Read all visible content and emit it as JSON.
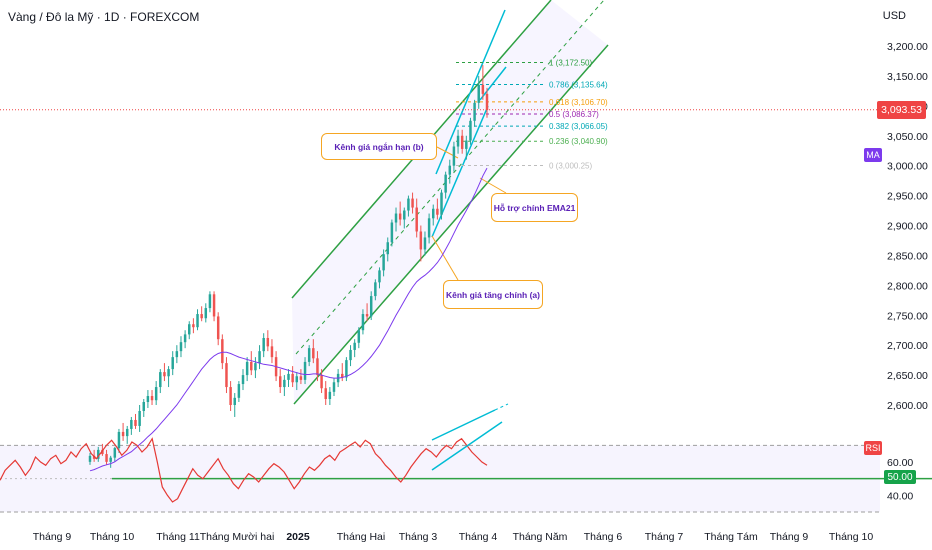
{
  "header": {
    "title": "Vàng / Đô la Mỹ · 1D · FOREXCOM",
    "currency": "USD"
  },
  "badges": {
    "last_price": "3,093.53",
    "ma_label": "MA",
    "rsi_label": "RSI",
    "rsi_level": "50.00"
  },
  "annotations": {
    "short_channel": "Kênh giá ngắn hạn (b)",
    "ema_support": "Hỗ trợ chính EMA21",
    "main_channel": "Kênh giá tăng chính (a)"
  },
  "colors": {
    "up": "#26a69a",
    "down": "#ef5350",
    "ma": "#7c3aed",
    "rsi": "#e53935",
    "channel": "#2ea043",
    "short_channel": "#00bcd4",
    "callout": "#f5a623"
  },
  "chart_data": {
    "type": "candlestick",
    "title": "Vàng / Đô la Mỹ · 1D · FOREXCOM",
    "price_axis": {
      "ticks": [
        "3,200.00",
        "3,150.00",
        "3,100.00",
        "3,050.00",
        "3,000.00",
        "2,950.00",
        "2,900.00",
        "2,850.00",
        "2,800.00",
        "2,750.00",
        "2,700.00",
        "2,650.00",
        "2,600.00"
      ],
      "range": [
        2580,
        3230
      ]
    },
    "x_axis": {
      "ticks": [
        "Tháng 9",
        "Tháng 10",
        "Tháng 11",
        "Tháng Mười hai",
        "2025",
        "Tháng Hai",
        "Tháng 3",
        "Tháng 4",
        "Tháng Năm",
        "Tháng 6",
        "Tháng 7",
        "Tháng Tám",
        "Tháng 9",
        "Tháng 10"
      ]
    },
    "last_price": 3093.53,
    "fibonacci": [
      {
        "level": "1",
        "price": 3172.5,
        "label": "1 (3,172.50)",
        "color": "#2ea043"
      },
      {
        "level": "0.786",
        "price": 3135.64,
        "label": "0.786 (3,135.64)",
        "color": "#00a8b5"
      },
      {
        "level": "0.618",
        "price": 3106.7,
        "label": "0.618 (3,106.70)",
        "color": "#f59e0b"
      },
      {
        "level": "0.5",
        "price": 3086.37,
        "label": "0.5 (3,086.37)",
        "color": "#9c27b0"
      },
      {
        "level": "0.382",
        "price": 3066.05,
        "label": "0.382 (3,066.05)",
        "color": "#00a8b5"
      },
      {
        "level": "0.236",
        "price": 3040.9,
        "label": "0.236 (3,040.90)",
        "color": "#4caf50"
      },
      {
        "level": "0",
        "price": 3000.25,
        "label": "0 (3,000.25)",
        "color": "#bdbdbd"
      }
    ],
    "candles": [
      [
        2505,
        2520,
        2500,
        2515
      ],
      [
        2515,
        2525,
        2505,
        2510
      ],
      [
        2510,
        2530,
        2505,
        2525
      ],
      [
        2525,
        2535,
        2515,
        2518
      ],
      [
        2518,
        2525,
        2500,
        2505
      ],
      [
        2505,
        2515,
        2495,
        2512
      ],
      [
        2512,
        2530,
        2505,
        2528
      ],
      [
        2528,
        2560,
        2520,
        2555
      ],
      [
        2555,
        2570,
        2540,
        2548
      ],
      [
        2548,
        2565,
        2535,
        2560
      ],
      [
        2560,
        2580,
        2550,
        2575
      ],
      [
        2575,
        2585,
        2560,
        2565
      ],
      [
        2565,
        2600,
        2555,
        2590
      ],
      [
        2590,
        2610,
        2580,
        2605
      ],
      [
        2605,
        2625,
        2595,
        2615
      ],
      [
        2615,
        2625,
        2600,
        2608
      ],
      [
        2608,
        2640,
        2600,
        2630
      ],
      [
        2630,
        2660,
        2620,
        2655
      ],
      [
        2655,
        2670,
        2640,
        2648
      ],
      [
        2648,
        2665,
        2630,
        2660
      ],
      [
        2660,
        2690,
        2650,
        2680
      ],
      [
        2680,
        2700,
        2670,
        2690
      ],
      [
        2690,
        2715,
        2680,
        2705
      ],
      [
        2705,
        2725,
        2695,
        2718
      ],
      [
        2718,
        2740,
        2710,
        2735
      ],
      [
        2735,
        2745,
        2720,
        2730
      ],
      [
        2730,
        2760,
        2725,
        2752
      ],
      [
        2752,
        2765,
        2740,
        2745
      ],
      [
        2745,
        2770,
        2738,
        2762
      ],
      [
        2762,
        2790,
        2755,
        2785
      ],
      [
        2785,
        2790,
        2740,
        2748
      ],
      [
        2748,
        2755,
        2700,
        2710
      ],
      [
        2710,
        2718,
        2660,
        2670
      ],
      [
        2670,
        2680,
        2620,
        2630
      ],
      [
        2630,
        2640,
        2590,
        2600
      ],
      [
        2600,
        2620,
        2580,
        2612
      ],
      [
        2612,
        2640,
        2605,
        2635
      ],
      [
        2635,
        2660,
        2625,
        2650
      ],
      [
        2650,
        2680,
        2640,
        2672
      ],
      [
        2672,
        2690,
        2650,
        2658
      ],
      [
        2658,
        2680,
        2645,
        2670
      ],
      [
        2670,
        2700,
        2660,
        2690
      ],
      [
        2690,
        2720,
        2680,
        2712
      ],
      [
        2712,
        2725,
        2690,
        2698
      ],
      [
        2698,
        2710,
        2670,
        2680
      ],
      [
        2680,
        2690,
        2640,
        2648
      ],
      [
        2648,
        2660,
        2620,
        2630
      ],
      [
        2630,
        2650,
        2615,
        2642
      ],
      [
        2642,
        2660,
        2630,
        2652
      ],
      [
        2652,
        2665,
        2630,
        2638
      ],
      [
        2638,
        2655,
        2625,
        2648
      ],
      [
        2648,
        2660,
        2635,
        2642
      ],
      [
        2642,
        2680,
        2635,
        2672
      ],
      [
        2672,
        2700,
        2665,
        2695
      ],
      [
        2695,
        2710,
        2670,
        2678
      ],
      [
        2678,
        2690,
        2640,
        2650
      ],
      [
        2650,
        2660,
        2620,
        2628
      ],
      [
        2628,
        2640,
        2600,
        2610
      ],
      [
        2610,
        2630,
        2600,
        2622
      ],
      [
        2622,
        2645,
        2615,
        2638
      ],
      [
        2638,
        2660,
        2630,
        2652
      ],
      [
        2652,
        2670,
        2640,
        2646
      ],
      [
        2646,
        2680,
        2640,
        2675
      ],
      [
        2675,
        2700,
        2665,
        2692
      ],
      [
        2692,
        2710,
        2680,
        2704
      ],
      [
        2704,
        2730,
        2695,
        2725
      ],
      [
        2725,
        2760,
        2718,
        2752
      ],
      [
        2752,
        2770,
        2740,
        2748
      ],
      [
        2748,
        2790,
        2742,
        2782
      ],
      [
        2782,
        2810,
        2775,
        2805
      ],
      [
        2805,
        2830,
        2795,
        2825
      ],
      [
        2825,
        2860,
        2815,
        2852
      ],
      [
        2852,
        2880,
        2840,
        2872
      ],
      [
        2872,
        2910,
        2865,
        2905
      ],
      [
        2905,
        2930,
        2890,
        2920
      ],
      [
        2920,
        2940,
        2900,
        2910
      ],
      [
        2910,
        2930,
        2895,
        2925
      ],
      [
        2925,
        2950,
        2915,
        2945
      ],
      [
        2945,
        2955,
        2920,
        2930
      ],
      [
        2930,
        2945,
        2880,
        2890
      ],
      [
        2890,
        2900,
        2840,
        2860
      ],
      [
        2860,
        2890,
        2850,
        2880
      ],
      [
        2880,
        2920,
        2870,
        2912
      ],
      [
        2912,
        2935,
        2900,
        2928
      ],
      [
        2928,
        2945,
        2910,
        2918
      ],
      [
        2918,
        2960,
        2910,
        2955
      ],
      [
        2955,
        2990,
        2945,
        2985
      ],
      [
        2985,
        3010,
        2970,
        3000
      ],
      [
        3000,
        3040,
        2990,
        3032
      ],
      [
        3032,
        3060,
        3020,
        3050
      ],
      [
        3050,
        3060,
        3020,
        3028
      ],
      [
        3028,
        3050,
        3010,
        3042
      ],
      [
        3042,
        3080,
        3035,
        3075
      ],
      [
        3075,
        3110,
        3065,
        3105
      ],
      [
        3105,
        3150,
        3095,
        3135
      ],
      [
        3135,
        3168,
        3110,
        3120
      ],
      [
        3120,
        3130,
        3080,
        3093
      ]
    ],
    "ma21": [
      2490,
      2492,
      2495,
      2498,
      2500,
      2502,
      2505,
      2510,
      2514,
      2518,
      2522,
      2528,
      2534,
      2540,
      2547,
      2553,
      2560,
      2568,
      2576,
      2584,
      2592,
      2600,
      2610,
      2620,
      2630,
      2640,
      2650,
      2660,
      2668,
      2676,
      2682,
      2686,
      2688,
      2688,
      2686,
      2683,
      2680,
      2678,
      2676,
      2674,
      2672,
      2670,
      2668,
      2667,
      2666,
      2664,
      2662,
      2660,
      2658,
      2656,
      2654,
      2652,
      2651,
      2651,
      2652,
      2652,
      2650,
      2648,
      2646,
      2645,
      2645,
      2646,
      2648,
      2651,
      2655,
      2660,
      2666,
      2673,
      2681,
      2690,
      2700,
      2712,
      2724,
      2737,
      2750,
      2762,
      2774,
      2786,
      2797,
      2806,
      2812,
      2817,
      2823,
      2830,
      2838,
      2848,
      2860,
      2873,
      2887,
      2901,
      2913,
      2925,
      2938,
      2952,
      2967,
      2983,
      2996
    ],
    "rsi": {
      "label": "RSI",
      "ticks": [
        "60.00",
        "50.00",
        "40.00"
      ],
      "range": [
        30,
        75
      ],
      "level": 50.0,
      "values": [
        49,
        55,
        58,
        61,
        57,
        52,
        56,
        63,
        60,
        58,
        62,
        64,
        59,
        61,
        66,
        63,
        68,
        71,
        65,
        62,
        66,
        70,
        73,
        69,
        64,
        67,
        72,
        70,
        66,
        69,
        74,
        60,
        45,
        40,
        36,
        38,
        44,
        50,
        56,
        52,
        50,
        54,
        58,
        62,
        56,
        52,
        47,
        44,
        49,
        53,
        51,
        48,
        52,
        56,
        59,
        57,
        54,
        49,
        44,
        48,
        53,
        57,
        55,
        58,
        62,
        64,
        61,
        66,
        68,
        70,
        72,
        69,
        73,
        71,
        65,
        62,
        58,
        55,
        51,
        48,
        52,
        57,
        61,
        65,
        68,
        66,
        63,
        67,
        70,
        68,
        72,
        74,
        70,
        66,
        63,
        60,
        58
      ]
    }
  }
}
